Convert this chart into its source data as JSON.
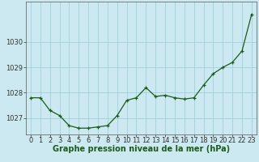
{
  "x": [
    0,
    1,
    2,
    3,
    4,
    5,
    6,
    7,
    8,
    9,
    10,
    11,
    12,
    13,
    14,
    15,
    16,
    17,
    18,
    19,
    20,
    21,
    22,
    23
  ],
  "y": [
    1027.8,
    1027.8,
    1027.3,
    1027.1,
    1026.7,
    1026.6,
    1026.6,
    1026.65,
    1026.7,
    1027.1,
    1027.7,
    1027.8,
    1028.2,
    1027.85,
    1027.9,
    1027.8,
    1027.75,
    1027.8,
    1028.3,
    1028.75,
    1029.0,
    1029.2,
    1029.65,
    1031.1
  ],
  "line_color": "#1a5c1a",
  "marker": "+",
  "marker_color": "#1a5c1a",
  "bg_color": "#cce8f0",
  "grid_color": "#99ccd8",
  "axis_label_color": "#1a5c1a",
  "tick_color": "#333333",
  "xlabel": "Graphe pression niveau de la mer (hPa)",
  "ylim": [
    1026.35,
    1031.6
  ],
  "xlim": [
    -0.5,
    23.5
  ],
  "yticks": [
    1027,
    1028,
    1029,
    1030
  ],
  "xticks": [
    0,
    1,
    2,
    3,
    4,
    5,
    6,
    7,
    8,
    9,
    10,
    11,
    12,
    13,
    14,
    15,
    16,
    17,
    18,
    19,
    20,
    21,
    22,
    23
  ],
  "xlabel_fontsize": 7.0,
  "tick_fontsize": 6.0,
  "linewidth": 0.9,
  "marker_size": 3.5
}
